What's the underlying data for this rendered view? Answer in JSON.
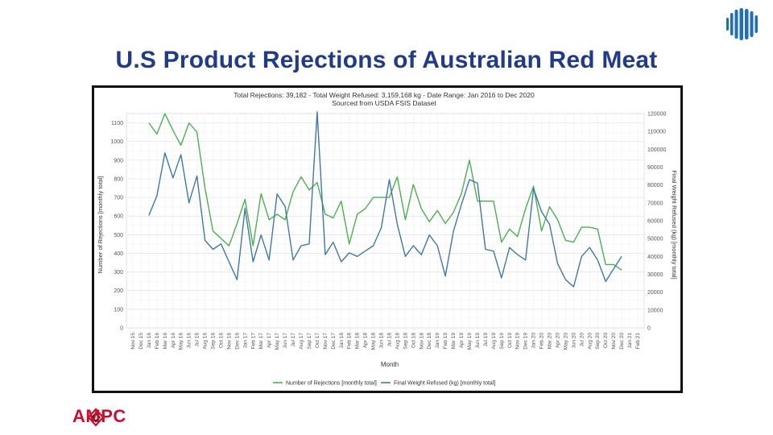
{
  "slide": {
    "title": "U.S Product Rejections of Australian Red Meat",
    "logo_text": "AMPC"
  },
  "colors": {
    "title": "#1f3b8a",
    "rejections_line": "#4caf50",
    "weight_line": "#3f78a8",
    "brand": "#c8102e"
  },
  "icons": [
    "globe-icon",
    "ampc-diamond-icon"
  ],
  "chart_data": {
    "type": "line",
    "title": "Total Rejections: 39,182 - Total Weight Refused: 3,159,168 kg - Date Range: Jan 2016 to Dec 2020",
    "subtitle": "Sourced from USDA FSIS Dataset",
    "xlabel": "Month",
    "ylabel": "Number of Rejections [monthly total]",
    "y2label": "Final Weight Refused (kg) [monthly total]",
    "ylim": [
      0,
      1150
    ],
    "y2lim": [
      0,
      120000
    ],
    "yticks": [
      0,
      100,
      200,
      300,
      400,
      500,
      600,
      700,
      800,
      900,
      1000,
      1100
    ],
    "y2ticks": [
      0,
      10000,
      20000,
      30000,
      40000,
      50000,
      60000,
      70000,
      80000,
      90000,
      100000,
      110000,
      120000
    ],
    "grid": true,
    "legend_position": "bottom",
    "x_tick_labels": [
      "Nov 15",
      "Dec 15",
      "Jan 16",
      "Feb 16",
      "Mar 16",
      "Apr 16",
      "May 16",
      "Jun 16",
      "Jul 16",
      "Aug 16",
      "Sep 16",
      "Oct 16",
      "Nov 16",
      "Dec 16",
      "Jan 17",
      "Feb 17",
      "Mar 17",
      "Apr 17",
      "May 17",
      "Jun 17",
      "Jul 17",
      "Aug 17",
      "Sep 17",
      "Oct 17",
      "Nov 17",
      "Dec 17",
      "Jan 18",
      "Feb 18",
      "Mar 18",
      "Apr 18",
      "May 18",
      "Jun 18",
      "Jul 18",
      "Aug 18",
      "Sep 18",
      "Oct 18",
      "Nov 18",
      "Dec 18",
      "Jan 19",
      "Feb 19",
      "Mar 19",
      "Apr 19",
      "May 19",
      "Jun 19",
      "Jul 19",
      "Aug 19",
      "Sep 19",
      "Oct 19",
      "Nov 19",
      "Dec 19",
      "Jan 20",
      "Feb 20",
      "Mar 20",
      "Apr 20",
      "May 20",
      "Jun 20",
      "Jul 20",
      "Aug 20",
      "Sep 20",
      "Oct 20",
      "Nov 20",
      "Dec 20",
      "Jan 21",
      "Feb 21"
    ],
    "x_start_index": 2,
    "series": [
      {
        "name": "Number of Rejections [monthly total]",
        "axis": "left",
        "values": [
          1100,
          1040,
          1150,
          1060,
          980,
          1100,
          1050,
          750,
          520,
          480,
          440,
          560,
          690,
          440,
          720,
          580,
          610,
          580,
          730,
          810,
          740,
          780,
          610,
          590,
          680,
          450,
          610,
          640,
          700,
          700,
          700,
          810,
          580,
          770,
          640,
          570,
          630,
          560,
          620,
          720,
          900,
          680,
          680,
          680,
          460,
          530,
          490,
          640,
          760,
          520,
          650,
          580,
          470,
          460,
          540,
          540,
          530,
          340,
          340,
          310
        ],
        "color": "#4caf50"
      },
      {
        "name": "Final Weight Refused (kg) [monthly total]",
        "axis": "right",
        "values": [
          63000,
          74000,
          98000,
          84000,
          97000,
          70000,
          85000,
          49000,
          44000,
          47000,
          37000,
          27000,
          67000,
          37000,
          52000,
          38000,
          75000,
          68000,
          38000,
          46000,
          47000,
          121000,
          41000,
          48000,
          37000,
          42000,
          40000,
          43000,
          46000,
          56000,
          83000,
          58000,
          40000,
          46000,
          41000,
          52000,
          46000,
          29000,
          54000,
          69000,
          83000,
          81000,
          44000,
          43000,
          28000,
          45000,
          41000,
          38000,
          78000,
          65000,
          58000,
          36000,
          27000,
          23000,
          40000,
          45000,
          38000,
          26000,
          33000,
          40000
        ],
        "color": "#3f78a8"
      }
    ]
  }
}
